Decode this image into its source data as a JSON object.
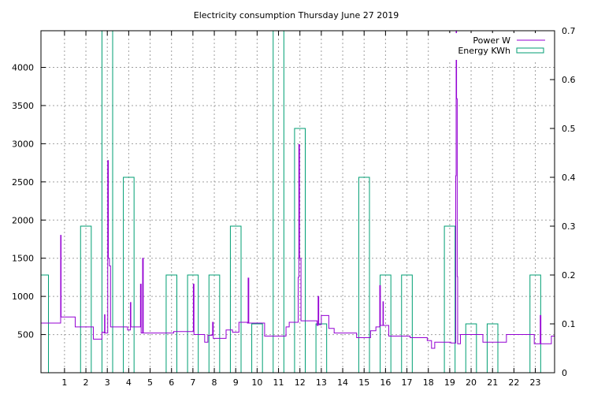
{
  "chart_data": {
    "type": "line",
    "title": "Electricity consumption Thursday June 27 2019",
    "xlabel": "",
    "ylabel": "",
    "y2label": "",
    "xlim": [
      -0.1,
      23.9
    ],
    "ylim": [
      0,
      4480
    ],
    "y2lim": [
      0,
      0.7
    ],
    "x_ticks": [
      1,
      2,
      3,
      4,
      5,
      6,
      7,
      8,
      9,
      10,
      11,
      12,
      13,
      14,
      15,
      16,
      17,
      18,
      19,
      20,
      21,
      22,
      23
    ],
    "y_ticks": [
      500,
      1000,
      1500,
      2000,
      2500,
      3000,
      3500,
      4000
    ],
    "y2_ticks": [
      0,
      0.1,
      0.2,
      0.3,
      0.4,
      0.5,
      0.6,
      0.7
    ],
    "grid": true,
    "legend_position": "top-right",
    "colors": {
      "power": "#9400d3",
      "energy": "#009e73"
    },
    "series": [
      {
        "name": "Power W",
        "axis": "left",
        "style": "step",
        "points": [
          [
            -0.1,
            650
          ],
          [
            0.8,
            650
          ],
          [
            0.82,
            1800
          ],
          [
            0.84,
            730
          ],
          [
            1.45,
            730
          ],
          [
            1.5,
            600
          ],
          [
            2.3,
            600
          ],
          [
            2.35,
            440
          ],
          [
            2.7,
            440
          ],
          [
            2.75,
            530
          ],
          [
            2.85,
            520
          ],
          [
            2.87,
            760
          ],
          [
            2.89,
            520
          ],
          [
            3.0,
            520
          ],
          [
            3.02,
            2780
          ],
          [
            3.05,
            1500
          ],
          [
            3.1,
            1400
          ],
          [
            3.15,
            600
          ],
          [
            3.9,
            600
          ],
          [
            3.95,
            560
          ],
          [
            4.05,
            560
          ],
          [
            4.08,
            920
          ],
          [
            4.1,
            600
          ],
          [
            4.5,
            600
          ],
          [
            4.55,
            1160
          ],
          [
            4.58,
            520
          ],
          [
            4.65,
            1500
          ],
          [
            4.68,
            520
          ],
          [
            6.1,
            540
          ],
          [
            7.0,
            540
          ],
          [
            7.02,
            1160
          ],
          [
            7.05,
            500
          ],
          [
            7.5,
            500
          ],
          [
            7.55,
            400
          ],
          [
            7.65,
            400
          ],
          [
            7.7,
            490
          ],
          [
            7.9,
            500
          ],
          [
            7.92,
            660
          ],
          [
            7.95,
            450
          ],
          [
            8.5,
            450
          ],
          [
            8.55,
            560
          ],
          [
            8.8,
            560
          ],
          [
            8.85,
            530
          ],
          [
            9.1,
            530
          ],
          [
            9.15,
            660
          ],
          [
            9.55,
            650
          ],
          [
            9.58,
            1240
          ],
          [
            9.61,
            650
          ],
          [
            10.3,
            650
          ],
          [
            10.35,
            480
          ],
          [
            11.3,
            480
          ],
          [
            11.35,
            600
          ],
          [
            11.5,
            660
          ],
          [
            11.9,
            660
          ],
          [
            11.92,
            1250
          ],
          [
            11.95,
            2990
          ],
          [
            11.98,
            1500
          ],
          [
            12.05,
            680
          ],
          [
            12.75,
            680
          ],
          [
            12.8,
            620
          ],
          [
            12.85,
            1000
          ],
          [
            12.88,
            630
          ],
          [
            13.0,
            750
          ],
          [
            13.3,
            750
          ],
          [
            13.35,
            580
          ],
          [
            13.55,
            580
          ],
          [
            13.6,
            520
          ],
          [
            14.6,
            520
          ],
          [
            14.65,
            460
          ],
          [
            15.25,
            460
          ],
          [
            15.3,
            550
          ],
          [
            15.55,
            600
          ],
          [
            15.7,
            600
          ],
          [
            15.73,
            1140
          ],
          [
            15.76,
            620
          ],
          [
            15.85,
            620
          ],
          [
            15.88,
            930
          ],
          [
            15.9,
            620
          ],
          [
            16.1,
            620
          ],
          [
            16.15,
            480
          ],
          [
            17.1,
            480
          ],
          [
            17.15,
            460
          ],
          [
            17.9,
            460
          ],
          [
            17.95,
            420
          ],
          [
            18.1,
            420
          ],
          [
            18.15,
            320
          ],
          [
            18.25,
            320
          ],
          [
            18.3,
            400
          ],
          [
            19.0,
            400
          ],
          [
            19.05,
            390
          ],
          [
            19.25,
            390
          ],
          [
            19.28,
            2580
          ],
          [
            19.3,
            4480
          ],
          [
            19.32,
            3590
          ],
          [
            19.35,
            1260
          ],
          [
            19.37,
            380
          ],
          [
            19.45,
            380
          ],
          [
            19.5,
            500
          ],
          [
            20.5,
            500
          ],
          [
            20.55,
            400
          ],
          [
            21.6,
            400
          ],
          [
            21.65,
            500
          ],
          [
            22.9,
            500
          ],
          [
            22.95,
            380
          ],
          [
            23.2,
            380
          ],
          [
            23.23,
            750
          ],
          [
            23.26,
            380
          ],
          [
            23.7,
            380
          ],
          [
            23.75,
            480
          ],
          [
            23.9,
            480
          ]
        ]
      },
      {
        "name": "Energy KWh",
        "axis": "right",
        "style": "boxes",
        "points": [
          [
            0,
            0.2
          ],
          [
            1,
            0
          ],
          [
            2,
            0.3
          ],
          [
            3,
            0.7
          ],
          [
            4,
            0.4
          ],
          [
            5,
            0
          ],
          [
            6,
            0.2
          ],
          [
            7,
            0.2
          ],
          [
            8,
            0.2
          ],
          [
            9,
            0.3
          ],
          [
            10,
            0.1
          ],
          [
            11,
            0.7
          ],
          [
            12,
            0.5
          ],
          [
            13,
            0.1
          ],
          [
            14,
            0
          ],
          [
            15,
            0.4
          ],
          [
            16,
            0.2
          ],
          [
            17,
            0.2
          ],
          [
            18,
            0
          ],
          [
            19,
            0.3
          ],
          [
            20,
            0.1
          ],
          [
            21,
            0.1
          ],
          [
            22,
            0
          ],
          [
            23,
            0.2
          ]
        ]
      }
    ]
  }
}
